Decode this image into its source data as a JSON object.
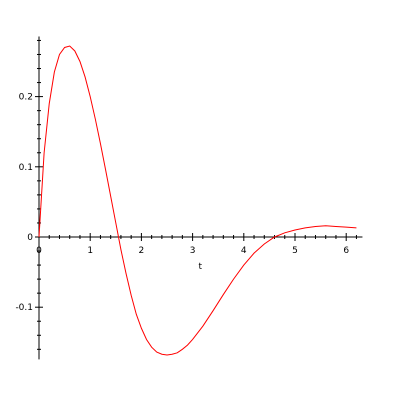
{
  "chart_data": {
    "type": "line",
    "title": "",
    "xlabel": "t",
    "ylabel": "",
    "xlim": [
      0,
      6.2
    ],
    "ylim": [
      -0.17,
      0.28
    ],
    "x_ticks": [
      0,
      1,
      2,
      3,
      4,
      5,
      6
    ],
    "x_tick_labels": [
      "0",
      "1",
      "2",
      "3",
      "4",
      "5",
      "6"
    ],
    "y_ticks": [
      0.2,
      0.1,
      0,
      -0.1
    ],
    "y_tick_labels": [
      "0.2",
      "0.1",
      "0",
      "-0.1"
    ],
    "grid": false,
    "colors": {
      "curve": "#ff0000",
      "axes": "#000000"
    },
    "series": [
      {
        "x": [
          0,
          0.1,
          0.2,
          0.3,
          0.4,
          0.5,
          0.6,
          0.7,
          0.8,
          0.9,
          1.0,
          1.1,
          1.2,
          1.3,
          1.4,
          1.5,
          1.6,
          1.7,
          1.8,
          1.9,
          2.0,
          2.1,
          2.2,
          2.3,
          2.4,
          2.5,
          2.6,
          2.7,
          2.8,
          2.9,
          3.0,
          3.2,
          3.4,
          3.6,
          3.8,
          4.0,
          4.2,
          4.4,
          4.6,
          4.8,
          5.0,
          5.2,
          5.4,
          5.6,
          5.8,
          6.0,
          6.2
        ],
        "y": [
          0,
          0.12,
          0.19,
          0.235,
          0.26,
          0.27,
          0.272,
          0.265,
          0.25,
          0.228,
          0.2,
          0.168,
          0.133,
          0.096,
          0.058,
          0.02,
          -0.018,
          -0.052,
          -0.083,
          -0.11,
          -0.13,
          -0.146,
          -0.157,
          -0.164,
          -0.167,
          -0.168,
          -0.167,
          -0.165,
          -0.16,
          -0.154,
          -0.146,
          -0.127,
          -0.105,
          -0.082,
          -0.06,
          -0.04,
          -0.023,
          -0.01,
          0,
          0.006,
          0.01,
          0.013,
          0.015,
          0.016,
          0.015,
          0.014,
          0.013
        ]
      }
    ]
  }
}
